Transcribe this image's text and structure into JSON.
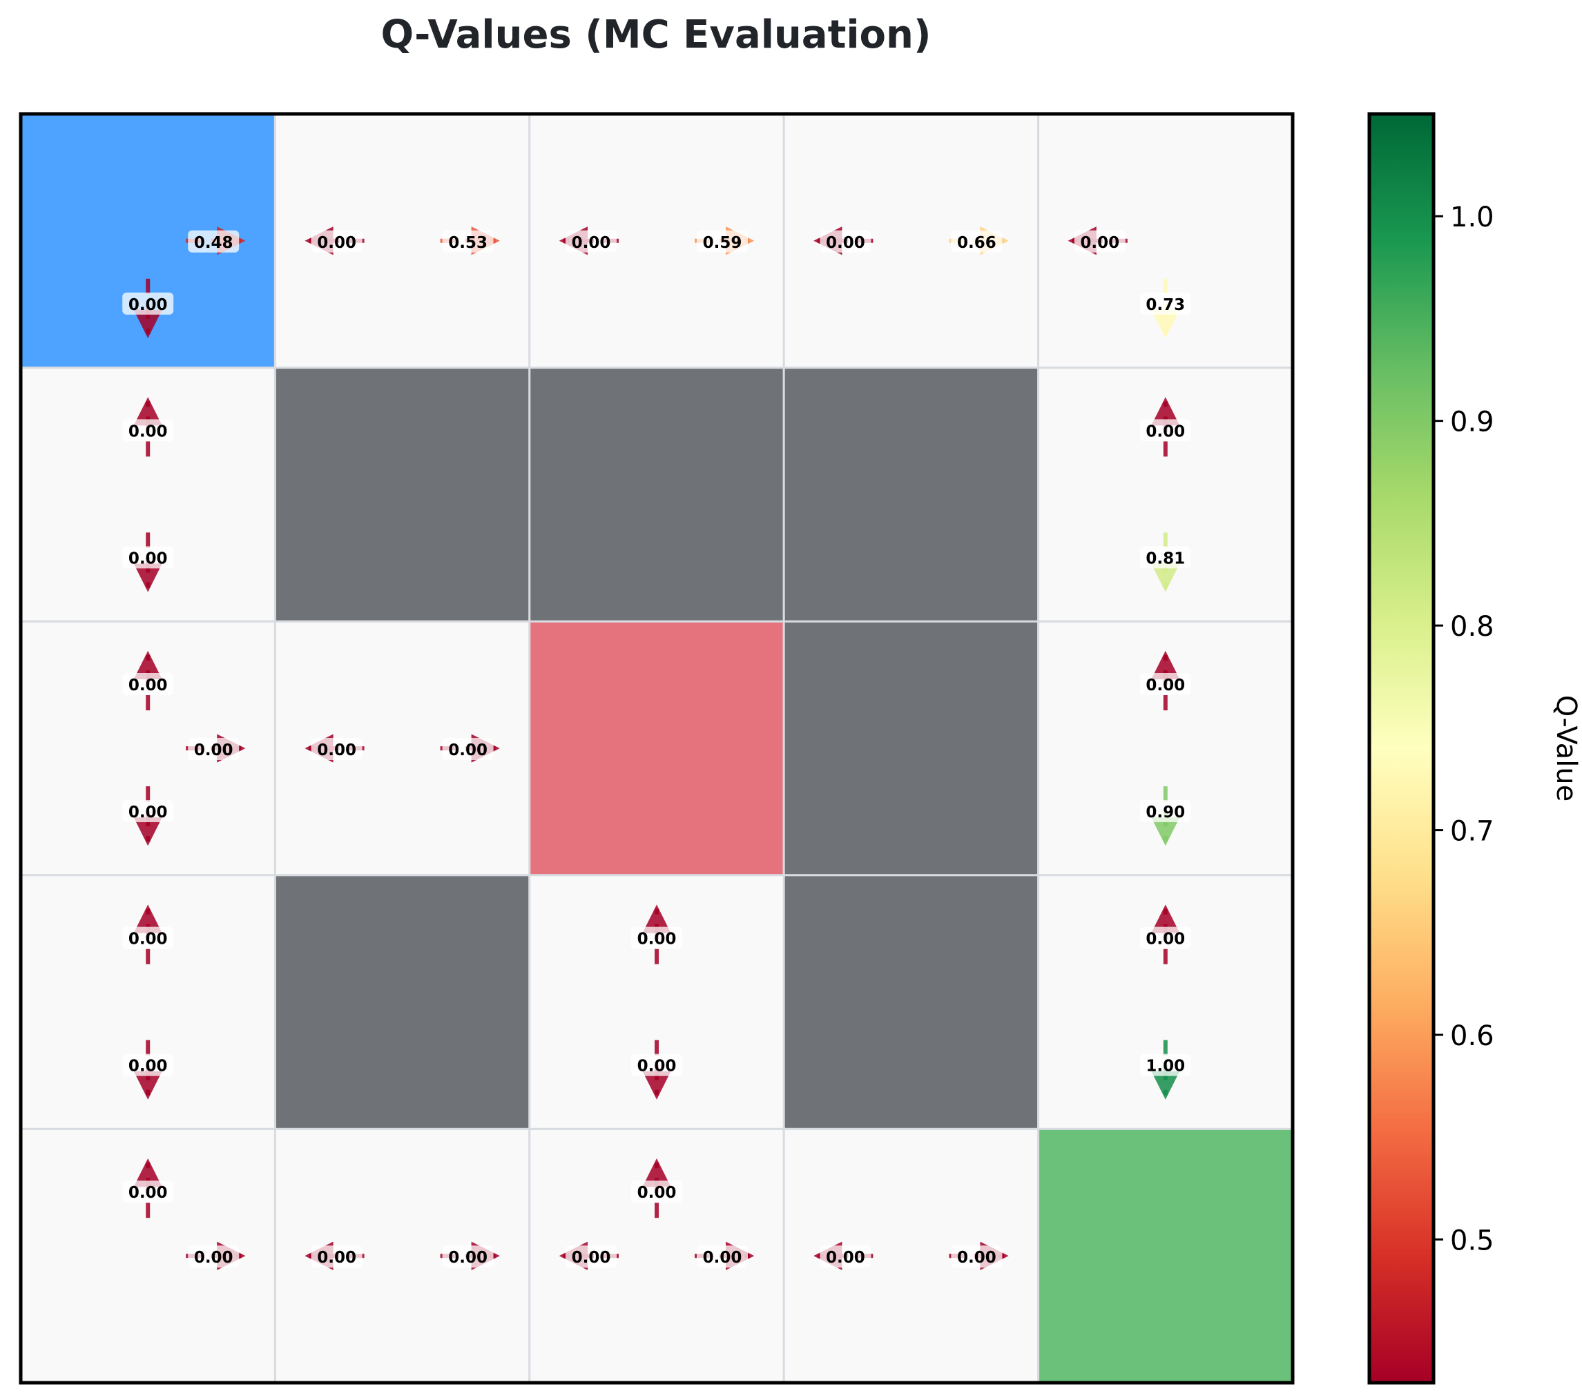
{
  "chart_data": {
    "type": "heatmap",
    "title": "Q-Values (MC Evaluation)",
    "grid": {
      "rows": 5,
      "cols": 5
    },
    "cell_types": [
      [
        "start",
        "empty",
        "empty",
        "empty",
        "empty"
      ],
      [
        "empty",
        "wall",
        "wall",
        "wall",
        "empty"
      ],
      [
        "empty",
        "empty",
        "hazard",
        "wall",
        "empty"
      ],
      [
        "empty",
        "wall",
        "empty",
        "wall",
        "empty"
      ],
      [
        "empty",
        "empty",
        "empty",
        "empty",
        "goal"
      ]
    ],
    "cell_colors": {
      "start": "#4da3ff",
      "empty": "#f9f9f9",
      "wall": "#6f7276",
      "hazard": "#e5737e",
      "goal": "#6cc17a",
      "cell_border": "#d8dbe0",
      "frame": "#000000"
    },
    "q_values": [
      {
        "row": 0,
        "col": 0,
        "action": "right",
        "value": 0.48,
        "label": "0.48"
      },
      {
        "row": 0,
        "col": 0,
        "action": "down",
        "value": 0.0,
        "label": "0.00"
      },
      {
        "row": 0,
        "col": 1,
        "action": "left",
        "value": 0.0,
        "label": "0.00"
      },
      {
        "row": 0,
        "col": 1,
        "action": "right",
        "value": 0.53,
        "label": "0.53"
      },
      {
        "row": 0,
        "col": 2,
        "action": "left",
        "value": 0.0,
        "label": "0.00"
      },
      {
        "row": 0,
        "col": 2,
        "action": "right",
        "value": 0.59,
        "label": "0.59"
      },
      {
        "row": 0,
        "col": 3,
        "action": "left",
        "value": 0.0,
        "label": "0.00"
      },
      {
        "row": 0,
        "col": 3,
        "action": "right",
        "value": 0.66,
        "label": "0.66"
      },
      {
        "row": 0,
        "col": 4,
        "action": "left",
        "value": 0.0,
        "label": "0.00"
      },
      {
        "row": 0,
        "col": 4,
        "action": "down",
        "value": 0.73,
        "label": "0.73"
      },
      {
        "row": 1,
        "col": 0,
        "action": "up",
        "value": 0.0,
        "label": "0.00"
      },
      {
        "row": 1,
        "col": 0,
        "action": "down",
        "value": 0.0,
        "label": "0.00"
      },
      {
        "row": 1,
        "col": 4,
        "action": "up",
        "value": 0.0,
        "label": "0.00"
      },
      {
        "row": 1,
        "col": 4,
        "action": "down",
        "value": 0.81,
        "label": "0.81"
      },
      {
        "row": 2,
        "col": 0,
        "action": "up",
        "value": 0.0,
        "label": "0.00"
      },
      {
        "row": 2,
        "col": 0,
        "action": "right",
        "value": 0.0,
        "label": "0.00"
      },
      {
        "row": 2,
        "col": 0,
        "action": "down",
        "value": 0.0,
        "label": "0.00"
      },
      {
        "row": 2,
        "col": 1,
        "action": "left",
        "value": 0.0,
        "label": "0.00"
      },
      {
        "row": 2,
        "col": 1,
        "action": "right",
        "value": 0.0,
        "label": "0.00"
      },
      {
        "row": 2,
        "col": 4,
        "action": "up",
        "value": 0.0,
        "label": "0.00"
      },
      {
        "row": 2,
        "col": 4,
        "action": "down",
        "value": 0.9,
        "label": "0.90"
      },
      {
        "row": 3,
        "col": 0,
        "action": "up",
        "value": 0.0,
        "label": "0.00"
      },
      {
        "row": 3,
        "col": 0,
        "action": "down",
        "value": 0.0,
        "label": "0.00"
      },
      {
        "row": 3,
        "col": 2,
        "action": "up",
        "value": 0.0,
        "label": "0.00"
      },
      {
        "row": 3,
        "col": 2,
        "action": "down",
        "value": 0.0,
        "label": "0.00"
      },
      {
        "row": 3,
        "col": 4,
        "action": "up",
        "value": 0.0,
        "label": "0.00"
      },
      {
        "row": 3,
        "col": 4,
        "action": "down",
        "value": 1.0,
        "label": "1.00"
      },
      {
        "row": 4,
        "col": 0,
        "action": "up",
        "value": 0.0,
        "label": "0.00"
      },
      {
        "row": 4,
        "col": 0,
        "action": "right",
        "value": 0.0,
        "label": "0.00"
      },
      {
        "row": 4,
        "col": 1,
        "action": "left",
        "value": 0.0,
        "label": "0.00"
      },
      {
        "row": 4,
        "col": 1,
        "action": "right",
        "value": 0.0,
        "label": "0.00"
      },
      {
        "row": 4,
        "col": 2,
        "action": "left",
        "value": 0.0,
        "label": "0.00"
      },
      {
        "row": 4,
        "col": 2,
        "action": "up",
        "value": 0.0,
        "label": "0.00"
      },
      {
        "row": 4,
        "col": 2,
        "action": "right",
        "value": 0.0,
        "label": "0.00"
      },
      {
        "row": 4,
        "col": 3,
        "action": "left",
        "value": 0.0,
        "label": "0.00"
      },
      {
        "row": 4,
        "col": 3,
        "action": "right",
        "value": 0.0,
        "label": "0.00"
      }
    ],
    "colorbar": {
      "label": "Q-Value",
      "colormap": "RdYlGn",
      "range": [
        0.43,
        1.05
      ],
      "ticks": [
        0.5,
        0.6,
        0.7,
        0.8,
        0.9,
        1.0
      ],
      "tick_labels": [
        "0.5",
        "0.6",
        "0.7",
        "0.8",
        "0.9",
        "1.0"
      ]
    }
  }
}
